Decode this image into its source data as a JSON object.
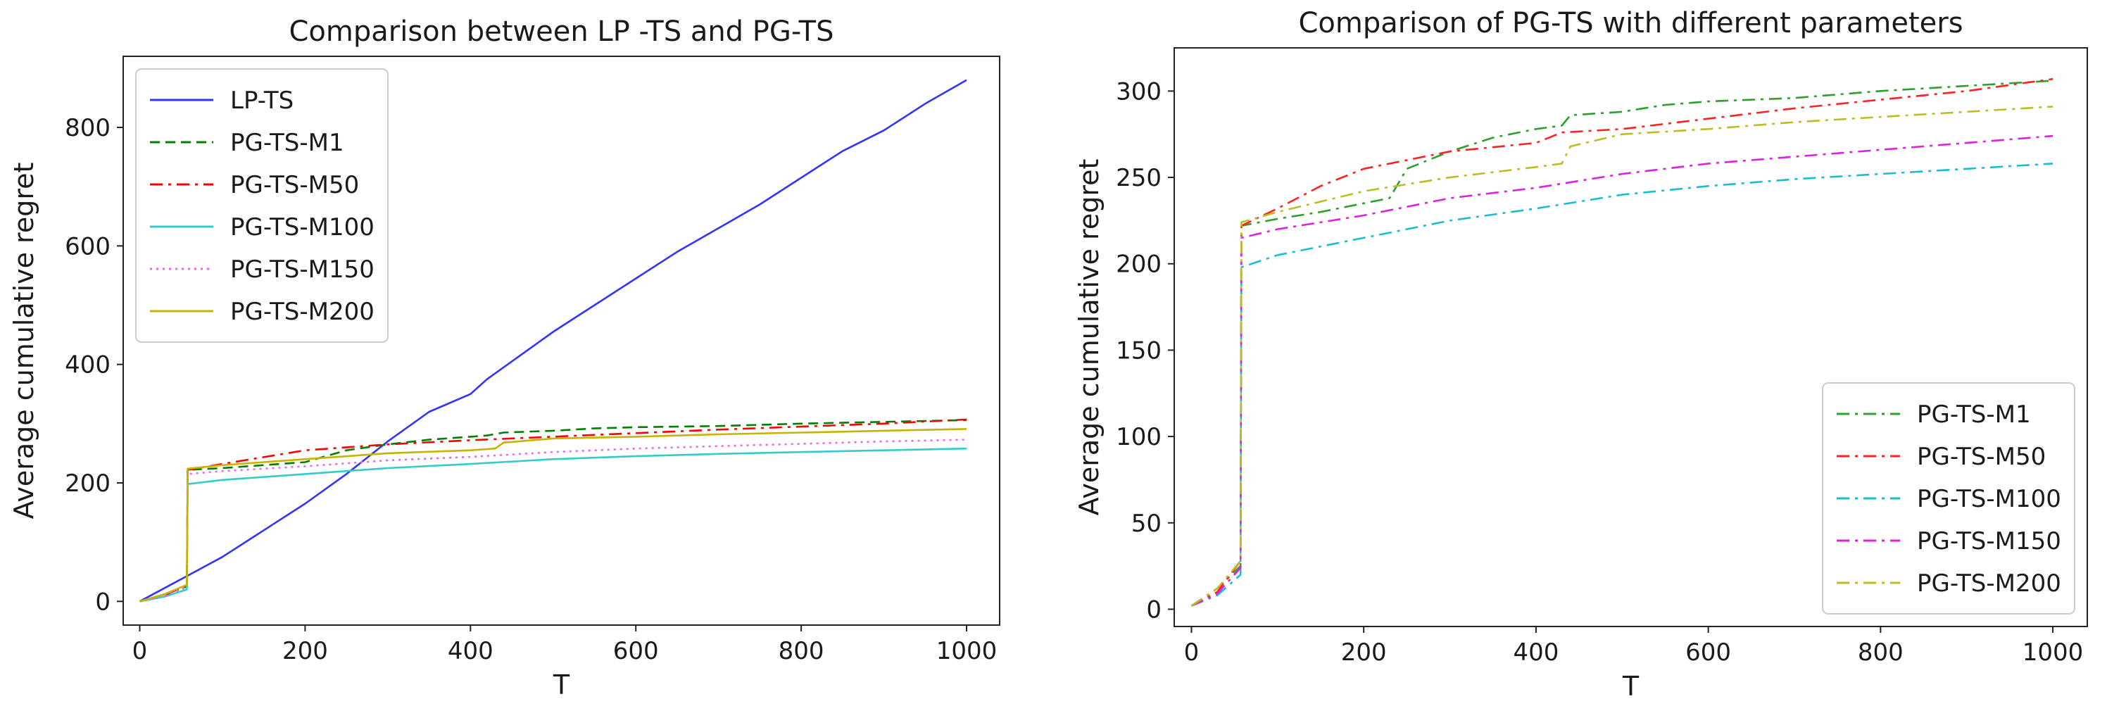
{
  "chart_data": [
    {
      "type": "line",
      "title": "Comparison between LP -TS and PG-TS",
      "xlabel": "T",
      "ylabel": "Average cumulative regret",
      "xlim": [
        -20,
        1040
      ],
      "ylim": [
        -40,
        920
      ],
      "xticks": [
        0,
        200,
        400,
        600,
        800,
        1000
      ],
      "yticks": [
        0,
        200,
        400,
        600,
        800
      ],
      "grid": false,
      "legend_position": "top-left",
      "series": [
        {
          "name": "LP-TS",
          "color": "#3333ff",
          "dash": "solid",
          "x": [
            0,
            60,
            100,
            200,
            250,
            300,
            350,
            400,
            420,
            450,
            500,
            550,
            600,
            650,
            700,
            750,
            800,
            850,
            900,
            950,
            1000
          ],
          "y": [
            0,
            45,
            75,
            165,
            215,
            270,
            320,
            350,
            375,
            405,
            455,
            500,
            545,
            590,
            630,
            670,
            715,
            760,
            795,
            840,
            880
          ]
        },
        {
          "name": "PG-TS-M1",
          "color": "#007f00",
          "dash": "dashed",
          "x": [
            0,
            30,
            57,
            58,
            100,
            200,
            250,
            300,
            350,
            400,
            420,
            440,
            500,
            550,
            600,
            700,
            800,
            900,
            1000
          ],
          "y": [
            0,
            12,
            25,
            222,
            225,
            235,
            255,
            265,
            273,
            278,
            280,
            285,
            288,
            292,
            294,
            296,
            300,
            303,
            306
          ]
        },
        {
          "name": "PG-TS-M50",
          "color": "#ff0000",
          "dash": "dashdot",
          "x": [
            0,
            30,
            57,
            58,
            100,
            200,
            300,
            400,
            500,
            600,
            700,
            800,
            900,
            1000
          ],
          "y": [
            0,
            10,
            28,
            222,
            232,
            255,
            265,
            272,
            278,
            284,
            290,
            295,
            300,
            307
          ]
        },
        {
          "name": "PG-TS-M100",
          "color": "#33cccc",
          "dash": "solid",
          "x": [
            0,
            30,
            57,
            58,
            100,
            200,
            300,
            400,
            500,
            600,
            700,
            800,
            900,
            1000
          ],
          "y": [
            0,
            8,
            20,
            198,
            205,
            215,
            225,
            232,
            240,
            245,
            249,
            252,
            255,
            258
          ]
        },
        {
          "name": "PG-TS-M150",
          "color": "#ee66ee",
          "dash": "dotted",
          "x": [
            0,
            30,
            57,
            58,
            100,
            200,
            300,
            400,
            500,
            600,
            700,
            800,
            900,
            1000
          ],
          "y": [
            0,
            9,
            24,
            215,
            220,
            228,
            238,
            244,
            252,
            258,
            262,
            266,
            270,
            273
          ]
        },
        {
          "name": "PG-TS-M200",
          "color": "#c8b400",
          "dash": "solid",
          "x": [
            0,
            30,
            57,
            58,
            100,
            200,
            300,
            400,
            430,
            440,
            500,
            600,
            700,
            800,
            900,
            1000
          ],
          "y": [
            0,
            12,
            28,
            224,
            230,
            240,
            250,
            255,
            258,
            268,
            275,
            278,
            282,
            285,
            288,
            291
          ]
        }
      ]
    },
    {
      "type": "line",
      "title": "Comparison of PG-TS with different parameters",
      "xlabel": "T",
      "ylabel": "Average cumulative regret",
      "xlim": [
        -20,
        1040
      ],
      "ylim": [
        -10,
        325
      ],
      "xticks": [
        0,
        200,
        400,
        600,
        800,
        1000
      ],
      "yticks": [
        0,
        50,
        100,
        150,
        200,
        250,
        300
      ],
      "grid": false,
      "legend_position": "bottom-right",
      "series": [
        {
          "name": "PG-TS-M1",
          "color": "#2ca02c",
          "dash": "dashdot",
          "x": [
            0,
            30,
            57,
            58,
            100,
            150,
            200,
            230,
            250,
            300,
            350,
            400,
            430,
            440,
            500,
            550,
            600,
            700,
            800,
            900,
            1000
          ],
          "y": [
            2,
            12,
            25,
            222,
            226,
            230,
            235,
            238,
            255,
            265,
            273,
            278,
            280,
            286,
            288,
            292,
            294,
            296,
            300,
            303,
            306
          ]
        },
        {
          "name": "PG-TS-M50",
          "color": "#ff2222",
          "dash": "dashdot",
          "x": [
            0,
            30,
            57,
            58,
            100,
            150,
            200,
            300,
            400,
            430,
            500,
            600,
            700,
            800,
            900,
            1000
          ],
          "y": [
            2,
            10,
            28,
            222,
            232,
            245,
            255,
            265,
            270,
            276,
            278,
            284,
            290,
            295,
            300,
            307
          ]
        },
        {
          "name": "PG-TS-M100",
          "color": "#17becf",
          "dash": "dashdot",
          "x": [
            0,
            30,
            57,
            58,
            100,
            200,
            300,
            400,
            500,
            600,
            700,
            800,
            900,
            1000
          ],
          "y": [
            2,
            8,
            20,
            198,
            205,
            215,
            225,
            232,
            240,
            245,
            249,
            252,
            255,
            258
          ]
        },
        {
          "name": "PG-TS-M150",
          "color": "#dd22dd",
          "dash": "dashdot",
          "x": [
            0,
            30,
            57,
            58,
            100,
            200,
            300,
            400,
            500,
            600,
            700,
            800,
            900,
            1000
          ],
          "y": [
            2,
            9,
            24,
            215,
            220,
            228,
            238,
            244,
            252,
            258,
            262,
            266,
            270,
            274
          ]
        },
        {
          "name": "PG-TS-M200",
          "color": "#bcbd22",
          "dash": "dashdot",
          "x": [
            0,
            30,
            57,
            58,
            100,
            200,
            300,
            400,
            430,
            440,
            500,
            600,
            700,
            800,
            900,
            1000
          ],
          "y": [
            2,
            12,
            28,
            224,
            230,
            242,
            250,
            256,
            258,
            268,
            275,
            278,
            282,
            285,
            288,
            291
          ]
        }
      ]
    }
  ]
}
